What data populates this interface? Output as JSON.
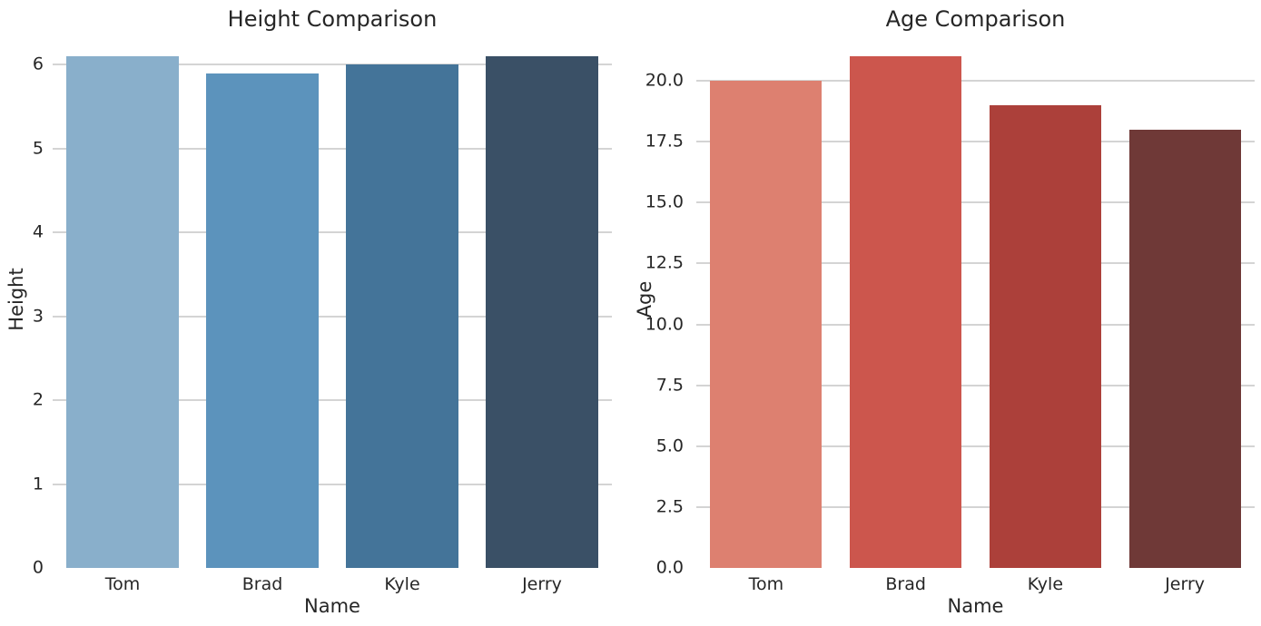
{
  "figure": {
    "background_color": "#ffffff",
    "text_color": "#262626",
    "grid_color": "#d4d4d4"
  },
  "chart_data": [
    {
      "type": "bar",
      "title": "Height Comparison",
      "xlabel": "Name",
      "ylabel": "Height",
      "categories": [
        "Tom",
        "Brad",
        "Kyle",
        "Jerry"
      ],
      "values": [
        6.1,
        5.9,
        6.0,
        6.1
      ],
      "ylim": [
        0,
        6.405
      ],
      "yticks": [
        0,
        1,
        2,
        3,
        4,
        5,
        6
      ],
      "ytick_labels": [
        "0",
        "1",
        "2",
        "3",
        "4",
        "5",
        "6"
      ],
      "bar_colors": [
        "#89AFCB",
        "#5C93BC",
        "#447499",
        "#3A5066"
      ],
      "grid": true,
      "legend": false
    },
    {
      "type": "bar",
      "title": "Age Comparison",
      "xlabel": "Name",
      "ylabel": "Age",
      "categories": [
        "Tom",
        "Brad",
        "Kyle",
        "Jerry"
      ],
      "values": [
        20,
        21,
        19,
        18
      ],
      "ylim": [
        0,
        22.05
      ],
      "yticks": [
        0,
        2.5,
        5,
        7.5,
        10,
        12.5,
        15,
        17.5,
        20
      ],
      "ytick_labels": [
        "0.0",
        "2.5",
        "5.0",
        "7.5",
        "10.0",
        "12.5",
        "15.0",
        "17.5",
        "20.0"
      ],
      "bar_colors": [
        "#DD8070",
        "#CC564D",
        "#AC403A",
        "#6F3937"
      ],
      "grid": true,
      "legend": false
    }
  ]
}
